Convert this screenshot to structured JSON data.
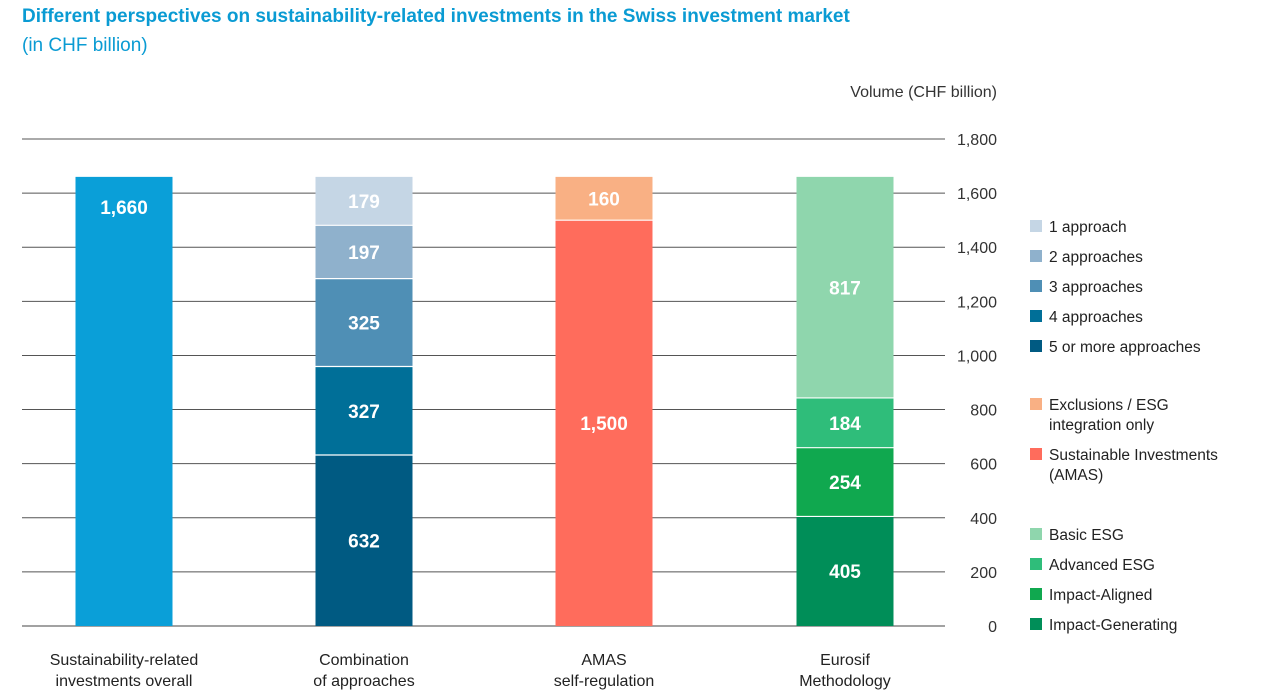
{
  "chart_data": {
    "type": "bar",
    "stacked": true,
    "title": "Different perspectives on sustainability-related investments in the Swiss investment market",
    "subtitle": "(in CHF billion)",
    "ylabel": "Volume (CHF billion)",
    "ylim": [
      0,
      1800
    ],
    "yticks": [
      0,
      200,
      400,
      600,
      800,
      1000,
      1200,
      1400,
      1600,
      1800
    ],
    "ytick_labels": [
      "0",
      "200",
      "400",
      "600",
      "800",
      "1,000",
      "1,200",
      "1,400",
      "1,600",
      "1,800"
    ],
    "grid": true,
    "categories": [
      {
        "lines": [
          "Sustainability-related",
          "investments overall"
        ]
      },
      {
        "lines": [
          "Combination",
          "of approaches"
        ]
      },
      {
        "lines": [
          "AMAS",
          "self-regulation"
        ]
      },
      {
        "lines": [
          "Eurosif",
          "Methodology"
        ]
      }
    ],
    "stacks": [
      [
        {
          "series": "Sustainability-related investments overall",
          "value": 1660,
          "label": "1,660",
          "color": "#0a9fd8",
          "label_pos": "top"
        }
      ],
      [
        {
          "series": "5 or more approaches",
          "value": 632,
          "label": "632",
          "color": "#005a82"
        },
        {
          "series": "4 approaches",
          "value": 327,
          "label": "327",
          "color": "#006f98"
        },
        {
          "series": "3 approaches",
          "value": 325,
          "label": "325",
          "color": "#4f8fb5"
        },
        {
          "series": "2 approaches",
          "value": 197,
          "label": "197",
          "color": "#8fb1cc"
        },
        {
          "series": "1 approach",
          "value": 179,
          "label": "179",
          "color": "#c5d6e5"
        }
      ],
      [
        {
          "series": "Sustainable Investments (AMAS)",
          "value": 1500,
          "label": "1,500",
          "color": "#ff6c5c"
        },
        {
          "series": "Exclusions / ESG integration only",
          "value": 160,
          "label": "160",
          "color": "#f9b084"
        }
      ],
      [
        {
          "series": "Impact-Generating",
          "value": 405,
          "label": "405",
          "color": "#008e58"
        },
        {
          "series": "Impact-Aligned",
          "value": 254,
          "label": "254",
          "color": "#10a84f"
        },
        {
          "series": "Advanced ESG",
          "value": 184,
          "label": "184",
          "color": "#2fbd7a"
        },
        {
          "series": "Basic ESG",
          "value": 817,
          "label": "817",
          "color": "#8fd6ad"
        }
      ]
    ],
    "legend": [
      {
        "group": "combination",
        "items": [
          {
            "lines": [
              "1 approach"
            ],
            "color": "#c5d6e5"
          },
          {
            "lines": [
              "2 approaches"
            ],
            "color": "#8fb1cc"
          },
          {
            "lines": [
              "3 approaches"
            ],
            "color": "#4f8fb5"
          },
          {
            "lines": [
              "4 approaches"
            ],
            "color": "#006f98"
          },
          {
            "lines": [
              "5 or more approaches"
            ],
            "color": "#005a82"
          }
        ]
      },
      {
        "group": "amas",
        "items": [
          {
            "lines": [
              "Exclusions / ESG",
              "integration only"
            ],
            "color": "#f9b084"
          },
          {
            "lines": [
              "Sustainable Investments",
              "(AMAS)"
            ],
            "color": "#ff6c5c"
          }
        ]
      },
      {
        "group": "eurosif",
        "items": [
          {
            "lines": [
              "Basic ESG"
            ],
            "color": "#8fd6ad"
          },
          {
            "lines": [
              "Advanced ESG"
            ],
            "color": "#2fbd7a"
          },
          {
            "lines": [
              "Impact-Aligned"
            ],
            "color": "#10a84f"
          },
          {
            "lines": [
              "Impact-Generating"
            ],
            "color": "#008e58"
          }
        ]
      }
    ]
  }
}
